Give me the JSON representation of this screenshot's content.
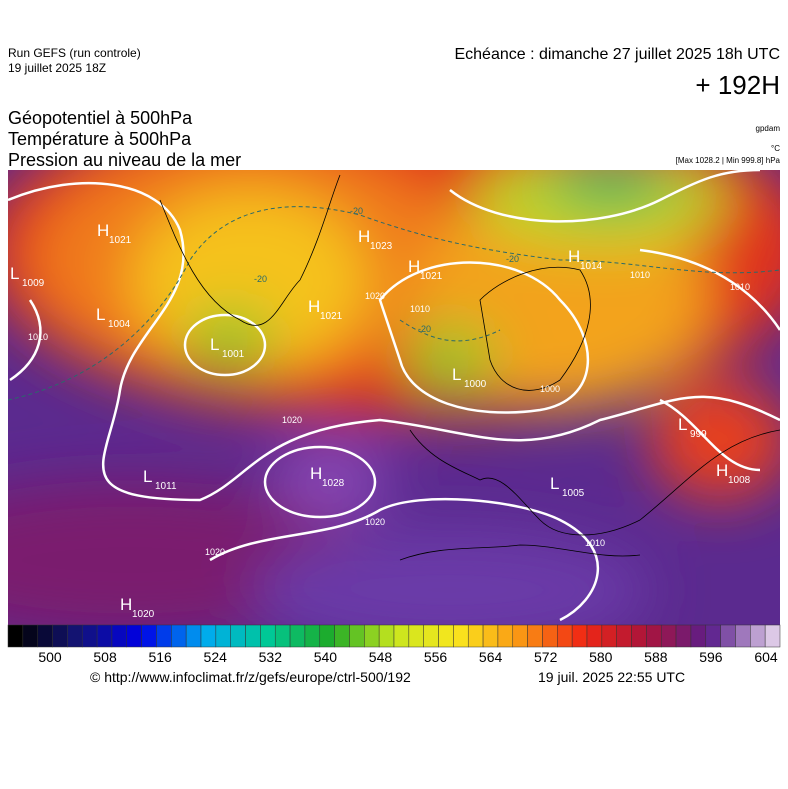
{
  "header": {
    "run": "Run GEFS (run controle)",
    "run_date": "19 juillet 2025 18Z",
    "valid": "Echéance : dimanche 27 juillet 2025 18h UTC",
    "lead": "+ 192H"
  },
  "titles": [
    "Géopotentiel à 500hPa",
    "Température à 500hPa",
    "Pression au niveau de la mer"
  ],
  "units": {
    "geopotential": "gpdam",
    "temperature": "°C",
    "pressure": "[Max 1028.2 | Min 999.8] hPa"
  },
  "pressure_centers": [
    {
      "type": "H",
      "value": 1021
    },
    {
      "type": "L",
      "value": 1009
    },
    {
      "type": "L",
      "value": 1004
    },
    {
      "type": "L",
      "value": 1001
    },
    {
      "type": "H",
      "value": 1023
    },
    {
      "type": "H",
      "value": 1021
    },
    {
      "type": "H",
      "value": 1021
    },
    {
      "type": "H",
      "value": 1014
    },
    {
      "type": "L",
      "value": 1000
    },
    {
      "type": "L",
      "value": 999
    },
    {
      "type": "H",
      "value": 1008
    },
    {
      "type": "L",
      "value": 1011
    },
    {
      "type": "H",
      "value": 1028
    },
    {
      "type": "L",
      "value": 1005
    },
    {
      "type": "H",
      "value": 1020
    }
  ],
  "isobar_labels": [
    1020,
    1010,
    1020,
    1020,
    1020,
    1010,
    1010,
    1010,
    1010,
    1000
  ],
  "isotherm_labels": [
    -20,
    -20,
    -20,
    -20
  ],
  "colorbar_labels": [
    500,
    508,
    516,
    524,
    532,
    540,
    548,
    556,
    564,
    572,
    580,
    588,
    596,
    604
  ],
  "footer": {
    "url": "© http://www.infoclimat.fr/z/gefs/europe/ctrl-500/192",
    "generated": "19 juil. 2025 22:55 UTC"
  }
}
